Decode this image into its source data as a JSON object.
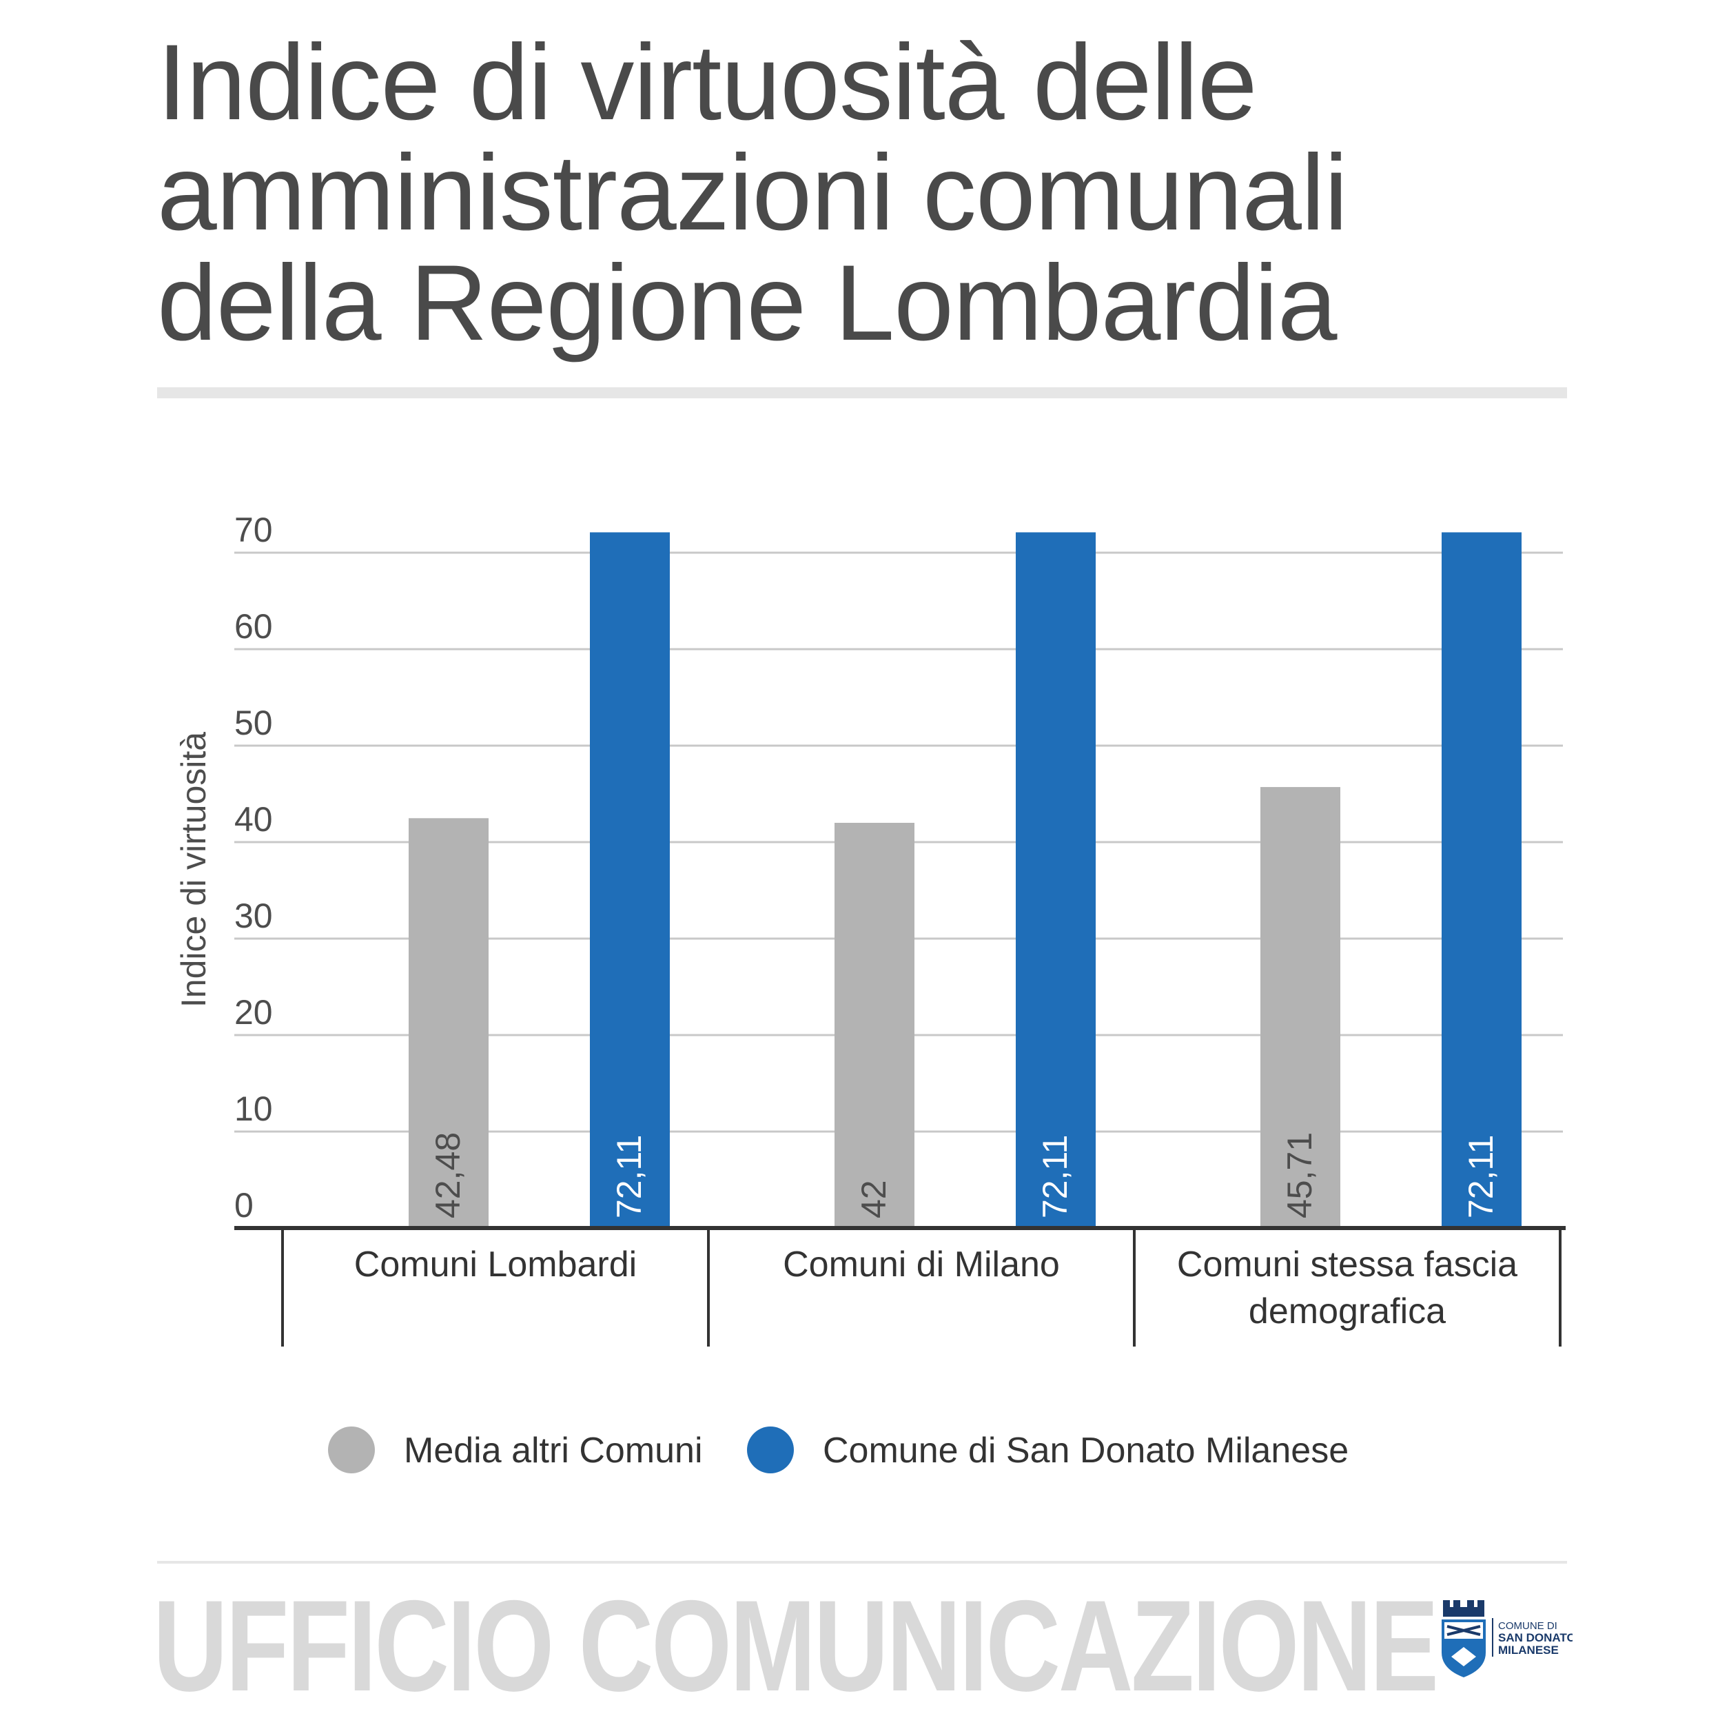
{
  "title_lines": [
    "Indice di virtuosità delle",
    "amministrazioni comunali",
    "della Regione Lombardia"
  ],
  "chart_data": {
    "type": "bar",
    "categories": [
      [
        "Comuni Lombardi"
      ],
      [
        "Comuni di Milano"
      ],
      [
        "Comuni stessa fascia",
        "demografica"
      ]
    ],
    "series": [
      {
        "name": "Media altri Comuni",
        "color": "#b3b3b3",
        "labelColor": "#4d4d4d",
        "values": [
          42.48,
          42,
          45.71
        ],
        "labels": [
          "42,48",
          "42",
          "45,71"
        ]
      },
      {
        "name": "Comune di San Donato Milanese",
        "color": "#1f6eb8",
        "labelColor": "#ffffff",
        "values": [
          72.11,
          72.11,
          72.11
        ],
        "labels": [
          "72,11",
          "72,11",
          "72,11"
        ]
      }
    ],
    "ylabel": "Indice di virtuosità",
    "yticks": [
      0,
      10,
      20,
      30,
      40,
      50,
      60,
      70
    ],
    "ylim": [
      0,
      72
    ],
    "grid": true,
    "legend": "bottom"
  },
  "footer": {
    "text": "UFFICIO COMUNICAZIONE",
    "logo_lines": [
      "COMUNE DI",
      "SAN DONATO",
      "MILANESE"
    ]
  }
}
